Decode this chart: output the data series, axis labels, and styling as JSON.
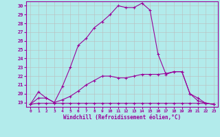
{
  "title": "",
  "xlabel": "Windchill (Refroidissement éolien,°C)",
  "ylabel": "",
  "bg_color": "#b2ebeb",
  "line_color": "#990099",
  "grid_color": "#bbbbbb",
  "ylim": [
    18.5,
    30.5
  ],
  "xlim": [
    -0.5,
    23.5
  ],
  "yticks": [
    19,
    20,
    21,
    22,
    23,
    24,
    25,
    26,
    27,
    28,
    29,
    30
  ],
  "xticks": [
    0,
    1,
    2,
    3,
    4,
    5,
    6,
    7,
    8,
    9,
    10,
    11,
    12,
    13,
    14,
    15,
    16,
    17,
    18,
    19,
    20,
    21,
    22,
    23
  ],
  "line1_x": [
    0,
    1,
    2,
    3,
    4,
    5,
    6,
    7,
    8,
    9,
    10,
    11,
    12,
    13,
    14,
    15,
    16,
    17,
    18,
    19,
    20,
    21,
    22,
    23
  ],
  "line1_y": [
    18.8,
    20.2,
    19.5,
    19.0,
    20.8,
    23.0,
    25.5,
    26.3,
    27.5,
    28.2,
    29.0,
    30.0,
    29.8,
    29.8,
    30.3,
    29.5,
    24.5,
    22.2,
    22.5,
    22.5,
    20.0,
    19.2,
    18.9,
    18.8
  ],
  "line2_x": [
    0,
    1,
    2,
    3,
    4,
    5,
    6,
    7,
    8,
    9,
    10,
    11,
    12,
    13,
    14,
    15,
    16,
    17,
    18,
    19,
    20,
    21,
    22,
    23
  ],
  "line2_y": [
    18.8,
    19.5,
    19.5,
    19.0,
    19.3,
    19.7,
    20.3,
    21.0,
    21.5,
    22.0,
    22.0,
    21.8,
    21.8,
    22.0,
    22.2,
    22.2,
    22.2,
    22.3,
    22.5,
    22.5,
    20.0,
    19.5,
    18.9,
    18.8
  ],
  "line3_x": [
    0,
    1,
    2,
    3,
    4,
    5,
    6,
    7,
    8,
    9,
    10,
    11,
    12,
    13,
    14,
    15,
    16,
    17,
    18,
    19,
    20,
    21,
    22,
    23
  ],
  "line3_y": [
    18.8,
    18.9,
    18.9,
    18.9,
    18.9,
    18.9,
    18.9,
    18.9,
    18.9,
    18.9,
    18.9,
    18.9,
    18.9,
    18.9,
    18.9,
    18.9,
    18.9,
    18.9,
    18.9,
    18.9,
    18.9,
    18.9,
    18.9,
    18.8
  ]
}
